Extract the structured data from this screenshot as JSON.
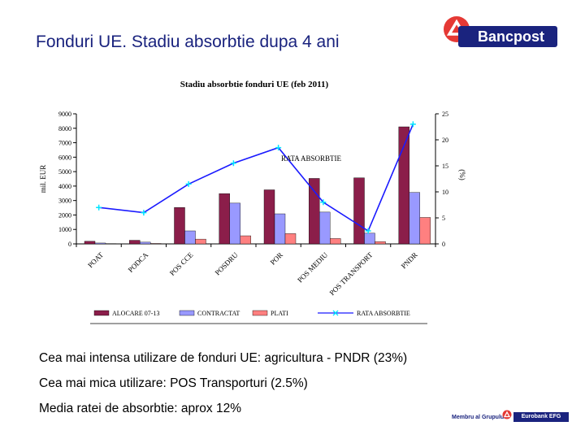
{
  "slide": {
    "title": "Fonduri UE. Stadiu absorbtie dupa 4 ani",
    "logo_text": "Bancpost",
    "bullets": [
      "Cea mai intensa utilizare de fonduri UE: agricultura - PNDR (23%)",
      "Cea mai mica utilizare: POS Transporturi (2.5%)",
      "Media ratei de absorbtie: aprox 12%"
    ],
    "footer": {
      "membru": "Membru al Grupului",
      "group": "Eurobank EFG"
    },
    "colors": {
      "brand_navy": "#1a237e",
      "brand_red": "#e53935"
    }
  },
  "chart_data": {
    "type": "bar",
    "title": "Stadiu absorbtie fonduri UE (feb 2011)",
    "ylabel": "mil. EUR",
    "y2label": "(%)",
    "ylim": [
      0,
      9000
    ],
    "y2lim": [
      0,
      25
    ],
    "yticks": [
      "0",
      "1000",
      "2000",
      "3000",
      "4000",
      "5000",
      "6000",
      "7000",
      "8000",
      "9000"
    ],
    "y2ticks": [
      "0",
      "5",
      "10",
      "15",
      "20",
      "25"
    ],
    "categories": [
      "POAT",
      "PODCA",
      "POS CCE",
      "POSDRU",
      "POR",
      "POS MEDIU",
      "POS TRANSPORT",
      "PNDR"
    ],
    "series": [
      {
        "name": "ALOCARE 07-13",
        "kind": "bar",
        "color": "#8b1e4a",
        "values": [
          180,
          250,
          2520,
          3480,
          3740,
          4530,
          4570,
          8100
        ]
      },
      {
        "name": "CONTRACTAT",
        "kind": "bar",
        "color": "#9999ff",
        "values": [
          60,
          120,
          900,
          2820,
          2080,
          2200,
          740,
          3560
        ]
      },
      {
        "name": "PLATI",
        "kind": "bar",
        "color": "#ff8080",
        "values": [
          20,
          30,
          330,
          560,
          710,
          370,
          160,
          1830
        ]
      },
      {
        "name": "RATA ABSORBTIE",
        "kind": "line",
        "axis": "right",
        "color": "#1a1aff",
        "marker_color": "#00e5ff",
        "values": [
          7,
          6,
          11.5,
          15.5,
          18.5,
          8,
          2.5,
          23
        ]
      }
    ],
    "annotation": {
      "text": "RATA ABSORBTIE"
    },
    "legend_position": "bottom",
    "grid": false
  }
}
